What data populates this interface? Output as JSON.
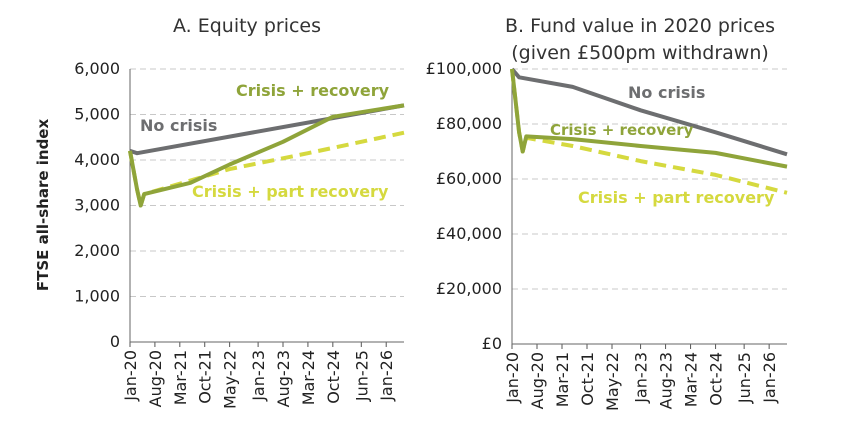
{
  "chart_data": [
    {
      "type": "line",
      "title": "A. Equity prices",
      "ylabel": "FTSE all-share index",
      "xlabel": "",
      "ylim": [
        0,
        6000
      ],
      "yticks": [
        0,
        1000,
        2000,
        3000,
        4000,
        5000,
        6000
      ],
      "ytick_labels": [
        "0",
        "1,000",
        "2,000",
        "3,000",
        "4,000",
        "5,000",
        "6,000"
      ],
      "xlim": [
        "2020-01",
        "2026-06"
      ],
      "xticks": [
        "2020-01",
        "2020-08",
        "2021-03",
        "2021-10",
        "2022-05",
        "2023-01",
        "2023-08",
        "2024-03",
        "2024-10",
        "2025-06",
        "2026-01"
      ],
      "xtick_labels": [
        "Jan-20",
        "Aug-20",
        "Mar-21",
        "Oct-21",
        "May-22",
        "Jan-23",
        "Aug-23",
        "Mar-24",
        "Oct-24",
        "Jun-25",
        "Jan-26"
      ],
      "grid": "horizontal dashed",
      "series": [
        {
          "name": "No crisis",
          "color": "#6d6e70",
          "style": "solid",
          "points": [
            [
              "2020-01",
              4200
            ],
            [
              "2020-03",
              4150
            ],
            [
              "2026-06",
              5200
            ]
          ]
        },
        {
          "name": "Crisis + recovery",
          "color": "#8fa43a",
          "style": "solid",
          "points": [
            [
              "2020-01",
              4200
            ],
            [
              "2020-03",
              3350
            ],
            [
              "2020-04",
              3000
            ],
            [
              "2020-05",
              3250
            ],
            [
              "2021-06",
              3500
            ],
            [
              "2022-05",
              3900
            ],
            [
              "2023-08",
              4400
            ],
            [
              "2024-10",
              4950
            ],
            [
              "2025-06",
              5050
            ],
            [
              "2026-06",
              5200
            ]
          ]
        },
        {
          "name": "Crisis + part recovery",
          "color": "#d5d93f",
          "style": "dashed",
          "points": [
            [
              "2020-01",
              4200
            ],
            [
              "2020-03",
              3350
            ],
            [
              "2020-04",
              3000
            ],
            [
              "2020-05",
              3250
            ],
            [
              "2022-05",
              3800
            ],
            [
              "2024-03",
              4150
            ],
            [
              "2026-06",
              4600
            ]
          ]
        }
      ]
    },
    {
      "type": "line",
      "title": "B. Fund value in 2020 prices (given £500pm withdrawn)",
      "title_lines": [
        "B. Fund value in 2020 prices",
        "(given £500pm withdrawn)"
      ],
      "ylabel": "",
      "xlabel": "",
      "ylim": [
        0,
        100000
      ],
      "yticks": [
        0,
        20000,
        40000,
        60000,
        80000,
        100000
      ],
      "ytick_labels": [
        "£0",
        "£20,000",
        "£40,000",
        "£60,000",
        "£80,000",
        "£100,000"
      ],
      "xlim": [
        "2020-01",
        "2026-06"
      ],
      "xticks": [
        "2020-01",
        "2020-08",
        "2021-03",
        "2021-10",
        "2022-05",
        "2023-01",
        "2023-08",
        "2024-03",
        "2024-10",
        "2025-06",
        "2026-01"
      ],
      "xtick_labels": [
        "Jan-20",
        "Aug-20",
        "Mar-21",
        "Oct-21",
        "May-22",
        "Jan-23",
        "Aug-23",
        "Mar-24",
        "Oct-24",
        "Jun-25",
        "Jan-26"
      ],
      "grid": "horizontal dashed",
      "series": [
        {
          "name": "No crisis",
          "color": "#6d6e70",
          "style": "solid",
          "points": [
            [
              "2020-01",
              100000
            ],
            [
              "2020-03",
              97000
            ],
            [
              "2021-06",
              93500
            ],
            [
              "2023-01",
              85000
            ],
            [
              "2024-10",
              77000
            ],
            [
              "2026-06",
              69000
            ]
          ]
        },
        {
          "name": "Crisis + recovery",
          "color": "#8fa43a",
          "style": "solid",
          "points": [
            [
              "2020-01",
              100000
            ],
            [
              "2020-03",
              77000
            ],
            [
              "2020-04",
              70000
            ],
            [
              "2020-05",
              75500
            ],
            [
              "2021-06",
              74500
            ],
            [
              "2023-01",
              72000
            ],
            [
              "2024-10",
              69500
            ],
            [
              "2026-06",
              64500
            ]
          ]
        },
        {
          "name": "Crisis + part recovery",
          "color": "#d5d93f",
          "style": "dashed",
          "points": [
            [
              "2020-01",
              100000
            ],
            [
              "2020-03",
              77000
            ],
            [
              "2020-04",
              70000
            ],
            [
              "2020-05",
              75000
            ],
            [
              "2021-06",
              72000
            ],
            [
              "2023-01",
              66500
            ],
            [
              "2024-10",
              61500
            ],
            [
              "2026-06",
              55000
            ]
          ]
        }
      ]
    }
  ]
}
